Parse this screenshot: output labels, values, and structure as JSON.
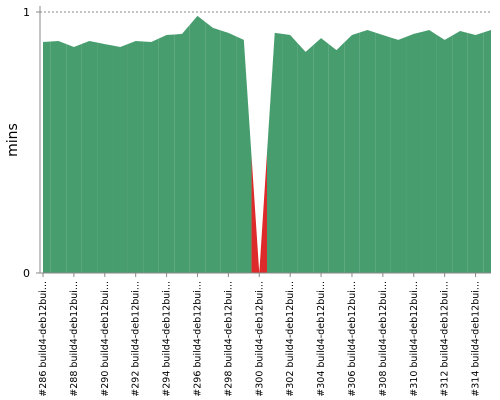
{
  "chart_data": {
    "type": "area",
    "y_label": "mins",
    "categories": [
      "#286 build4-deb12bui...",
      null,
      "#288 build4-deb12bui...",
      null,
      "#290 build4-deb12bui...",
      null,
      "#292 build4-deb12bui...",
      null,
      "#294 build4-deb12bui...",
      null,
      "#296 build4-deb12bui...",
      null,
      "#298 build4-deb12bui...",
      null,
      "#300 build4-deb12bui...",
      null,
      "#302 build4-deb12bui...",
      null,
      "#304 build4-deb12bui...",
      null,
      "#306 build4-deb12bui...",
      null,
      "#308 build4-deb12bui...",
      null,
      "#310 build4-deb12bui...",
      null,
      "#312 build4-deb12bui...",
      null,
      "#314 build4-deb12bui...",
      null
    ],
    "values": [
      0.885,
      0.889,
      0.866,
      0.889,
      0.877,
      0.866,
      0.889,
      0.885,
      0.912,
      0.916,
      0.985,
      0.939,
      0.92,
      0.893,
      0,
      0.92,
      0.912,
      0.847,
      0.9,
      0.854,
      0.912,
      0.931,
      0.912,
      0.893,
      0.916,
      0.931,
      0.893,
      0.927,
      0.912,
      0.931
    ],
    "colors": [
      "#489d6f",
      "#489d6f",
      "#489d6f",
      "#489d6f",
      "#489d6f",
      "#489d6f",
      "#489d6f",
      "#489d6f",
      "#489d6f",
      "#489d6f",
      "#489d6f",
      "#489d6f",
      "#489d6f",
      "#489d6f",
      "#dd2a2a",
      "#489d6f",
      "#489d6f",
      "#489d6f",
      "#489d6f",
      "#489d6f",
      "#489d6f",
      "#489d6f",
      "#489d6f",
      "#489d6f",
      "#489d6f",
      "#489d6f",
      "#489d6f",
      "#489d6f",
      "#489d6f",
      "#489d6f"
    ],
    "ylim": [
      0,
      1
    ],
    "yticks": [
      0,
      1
    ],
    "grid": true
  }
}
